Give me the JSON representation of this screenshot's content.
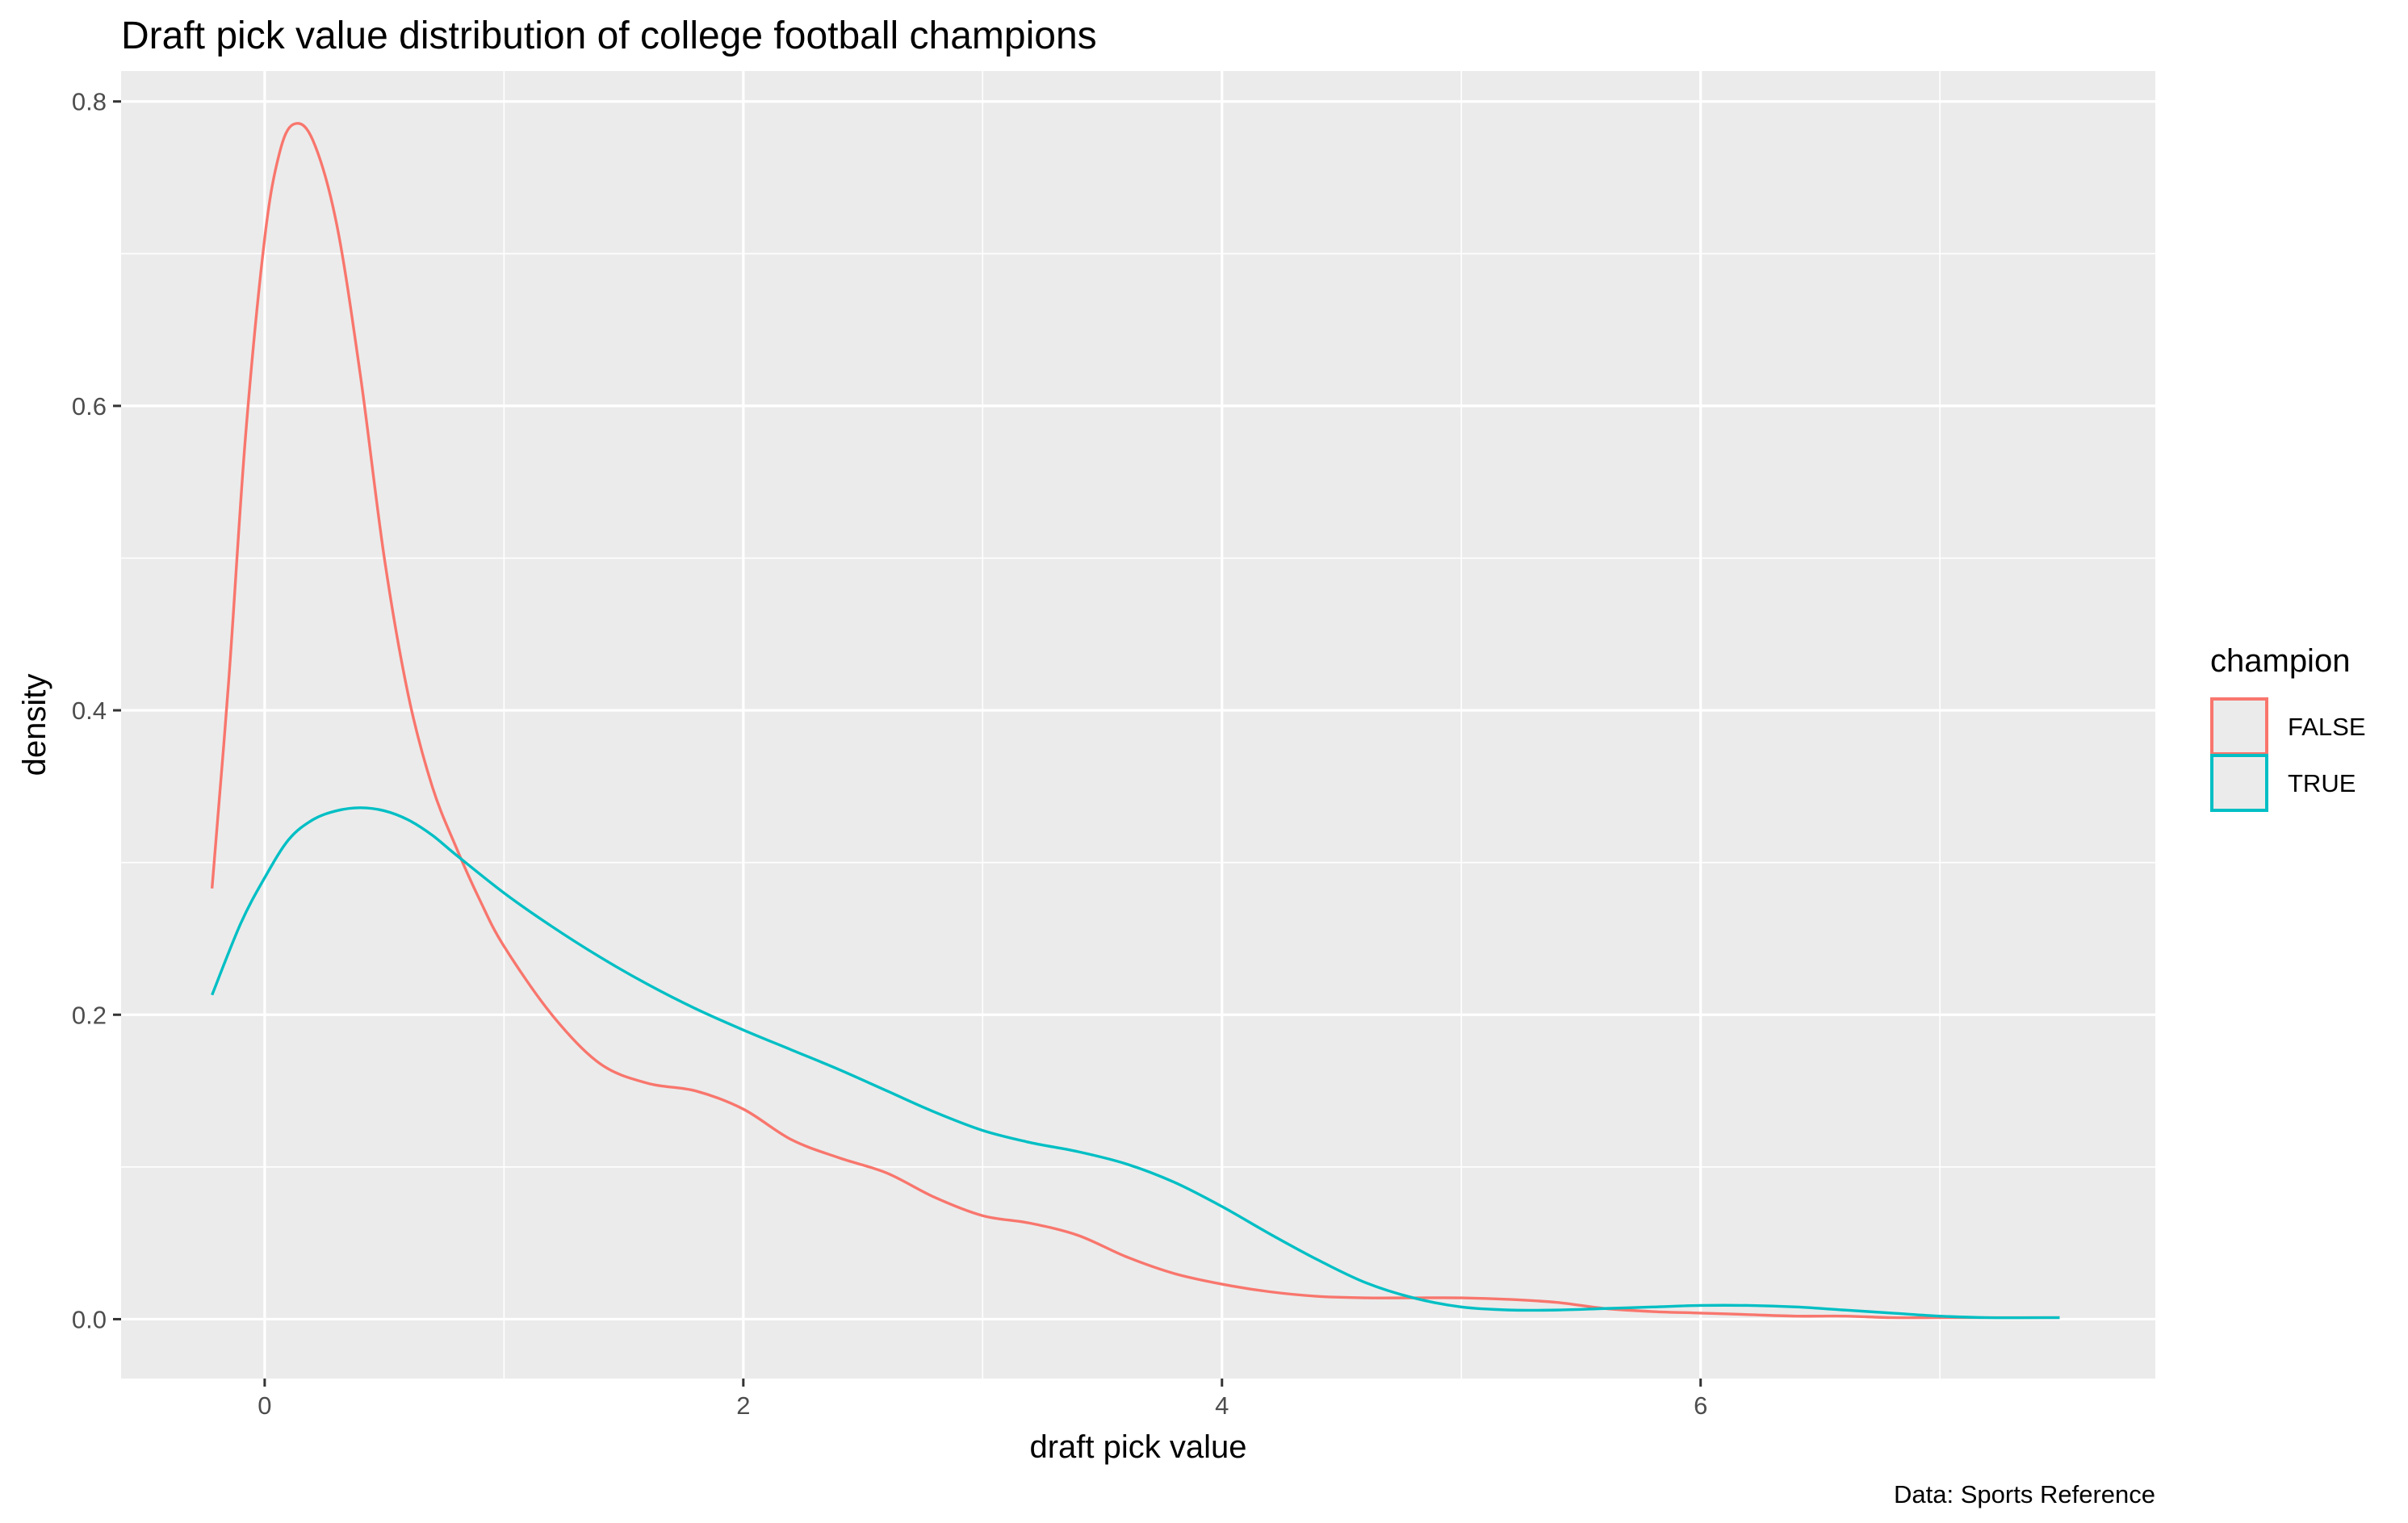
{
  "chart_data": {
    "type": "line",
    "title": "Draft pick value distribution of college football champions",
    "xlabel": "draft pick value",
    "ylabel": "density",
    "caption": "Data: Sports Reference",
    "xlim": [
      -0.6,
      7.9
    ],
    "ylim": [
      -0.039,
      0.82
    ],
    "x_ticks": [
      0,
      2,
      4,
      6
    ],
    "y_ticks": [
      0.0,
      0.2,
      0.4,
      0.6,
      0.8
    ],
    "x_tick_labels": [
      "0",
      "2",
      "4",
      "6"
    ],
    "y_tick_labels": [
      "0.0",
      "0.2",
      "0.4",
      "0.6",
      "0.8"
    ],
    "grid": true,
    "panel_background": "#EBEBEB",
    "legend": {
      "title": "champion",
      "position": "right"
    },
    "series": [
      {
        "name": "FALSE",
        "color": "#F8766D",
        "points": [
          [
            -0.22,
            0.283
          ],
          [
            -0.15,
            0.42
          ],
          [
            -0.08,
            0.58
          ],
          [
            0.0,
            0.71
          ],
          [
            0.06,
            0.765
          ],
          [
            0.12,
            0.785
          ],
          [
            0.2,
            0.775
          ],
          [
            0.3,
            0.72
          ],
          [
            0.4,
            0.62
          ],
          [
            0.5,
            0.5
          ],
          [
            0.6,
            0.41
          ],
          [
            0.7,
            0.35
          ],
          [
            0.8,
            0.31
          ],
          [
            0.9,
            0.275
          ],
          [
            1.0,
            0.245
          ],
          [
            1.2,
            0.2
          ],
          [
            1.4,
            0.168
          ],
          [
            1.6,
            0.155
          ],
          [
            1.8,
            0.15
          ],
          [
            2.0,
            0.138
          ],
          [
            2.2,
            0.118
          ],
          [
            2.4,
            0.106
          ],
          [
            2.6,
            0.096
          ],
          [
            2.8,
            0.08
          ],
          [
            3.0,
            0.068
          ],
          [
            3.2,
            0.063
          ],
          [
            3.4,
            0.055
          ],
          [
            3.6,
            0.041
          ],
          [
            3.8,
            0.03
          ],
          [
            4.0,
            0.023
          ],
          [
            4.2,
            0.018
          ],
          [
            4.4,
            0.015
          ],
          [
            4.6,
            0.014
          ],
          [
            4.8,
            0.014
          ],
          [
            5.0,
            0.014
          ],
          [
            5.2,
            0.013
          ],
          [
            5.4,
            0.011
          ],
          [
            5.6,
            0.007
          ],
          [
            5.8,
            0.005
          ],
          [
            6.0,
            0.004
          ],
          [
            6.2,
            0.003
          ],
          [
            6.4,
            0.002
          ],
          [
            6.6,
            0.002
          ],
          [
            6.8,
            0.001
          ],
          [
            7.0,
            0.001
          ],
          [
            7.2,
            0.001
          ],
          [
            7.5,
            0.001
          ]
        ]
      },
      {
        "name": "TRUE",
        "color": "#00BFC4",
        "points": [
          [
            -0.22,
            0.213
          ],
          [
            -0.1,
            0.26
          ],
          [
            0.0,
            0.29
          ],
          [
            0.1,
            0.315
          ],
          [
            0.2,
            0.328
          ],
          [
            0.3,
            0.334
          ],
          [
            0.4,
            0.336
          ],
          [
            0.5,
            0.334
          ],
          [
            0.6,
            0.328
          ],
          [
            0.7,
            0.318
          ],
          [
            0.8,
            0.305
          ],
          [
            1.0,
            0.28
          ],
          [
            1.2,
            0.258
          ],
          [
            1.4,
            0.238
          ],
          [
            1.6,
            0.22
          ],
          [
            1.8,
            0.204
          ],
          [
            2.0,
            0.19
          ],
          [
            2.2,
            0.177
          ],
          [
            2.4,
            0.164
          ],
          [
            2.6,
            0.15
          ],
          [
            2.8,
            0.136
          ],
          [
            3.0,
            0.124
          ],
          [
            3.2,
            0.116
          ],
          [
            3.4,
            0.11
          ],
          [
            3.6,
            0.102
          ],
          [
            3.8,
            0.09
          ],
          [
            4.0,
            0.074
          ],
          [
            4.2,
            0.056
          ],
          [
            4.4,
            0.039
          ],
          [
            4.6,
            0.024
          ],
          [
            4.8,
            0.014
          ],
          [
            5.0,
            0.008
          ],
          [
            5.2,
            0.006
          ],
          [
            5.4,
            0.006
          ],
          [
            5.6,
            0.007
          ],
          [
            5.8,
            0.008
          ],
          [
            6.0,
            0.009
          ],
          [
            6.2,
            0.009
          ],
          [
            6.4,
            0.008
          ],
          [
            6.6,
            0.006
          ],
          [
            6.8,
            0.004
          ],
          [
            7.0,
            0.002
          ],
          [
            7.2,
            0.001
          ],
          [
            7.5,
            0.001
          ]
        ]
      }
    ]
  }
}
